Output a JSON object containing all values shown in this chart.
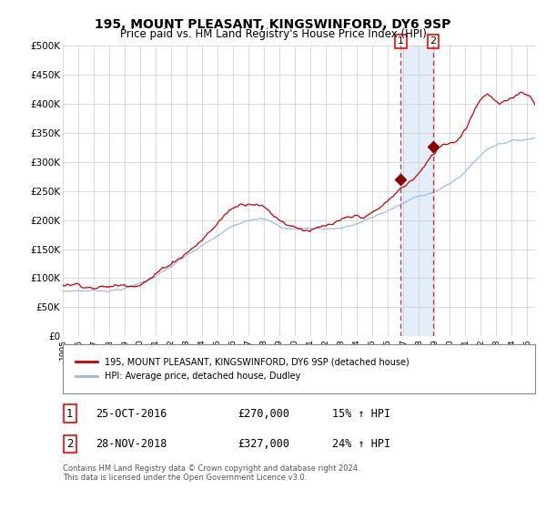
{
  "title": "195, MOUNT PLEASANT, KINGSWINFORD, DY6 9SP",
  "subtitle": "Price paid vs. HM Land Registry's House Price Index (HPI)",
  "title_fontsize": 10,
  "subtitle_fontsize": 8.5,
  "ylabel_ticks": [
    "£0",
    "£50K",
    "£100K",
    "£150K",
    "£200K",
    "£250K",
    "£300K",
    "£350K",
    "£400K",
    "£450K",
    "£500K"
  ],
  "ytick_values": [
    0,
    50000,
    100000,
    150000,
    200000,
    250000,
    300000,
    350000,
    400000,
    450000,
    500000
  ],
  "ylim": [
    0,
    500000
  ],
  "xlim_start": 1995.0,
  "xlim_end": 2025.5,
  "line1_color": "#cc0000",
  "line2_color": "#99bbdd",
  "marker_color": "#880000",
  "purchase1_x": 2016.82,
  "purchase1_y": 270000,
  "purchase2_x": 2018.91,
  "purchase2_y": 327000,
  "vline1_x": 2016.82,
  "vline2_x": 2018.91,
  "shade_x1": 2016.82,
  "shade_x2": 2018.91,
  "legend_label1": "195, MOUNT PLEASANT, KINGSWINFORD, DY6 9SP (detached house)",
  "legend_label2": "HPI: Average price, detached house, Dudley",
  "table_row1_num": "1",
  "table_row1_date": "25-OCT-2016",
  "table_row1_price": "£270,000",
  "table_row1_hpi": "15% ↑ HPI",
  "table_row2_num": "2",
  "table_row2_date": "28-NOV-2018",
  "table_row2_price": "£327,000",
  "table_row2_hpi": "24% ↑ HPI",
  "footnote": "Contains HM Land Registry data © Crown copyright and database right 2024.\nThis data is licensed under the Open Government Licence v3.0.",
  "background_color": "#ffffff",
  "grid_color": "#cccccc",
  "xtick_years": [
    1995,
    1996,
    1997,
    1998,
    1999,
    2000,
    2001,
    2002,
    2003,
    2004,
    2005,
    2006,
    2007,
    2008,
    2009,
    2010,
    2011,
    2012,
    2013,
    2014,
    2015,
    2016,
    2017,
    2018,
    2019,
    2020,
    2021,
    2022,
    2023,
    2024,
    2025
  ]
}
